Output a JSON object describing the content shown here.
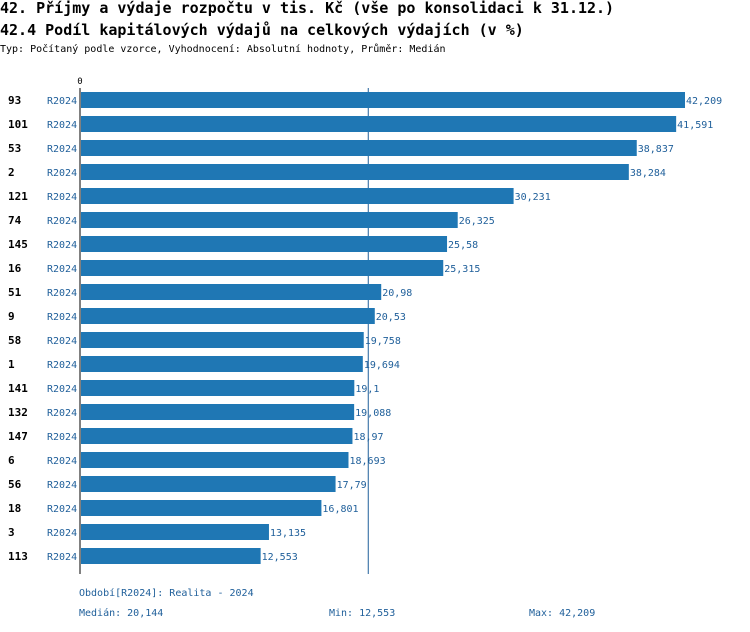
{
  "header": {
    "title": "42. Příjmy a výdaje rozpočtu v tis. Kč (vše po konsolidaci k 31.12.)",
    "subtitle": "42.4 Podíl kapitálových výdajů na celkových výdajích (v %)",
    "type_line": "Typ: Počítaný podle vzorce, Vyhodnocení: Absolutní hodnoty, Průměr: Medián"
  },
  "footer": {
    "period": "Období[R2024]: Realita - 2024",
    "median": "Medián: 20,144",
    "min": "Min: 12,553",
    "max": "Max: 42,209"
  },
  "colors": {
    "bar": "#1f77b4",
    "value_text": "#1f5f9a",
    "axis": "#1f5f9a"
  },
  "chart_data": {
    "type": "bar",
    "orientation": "horizontal",
    "title": "42.4 Podíl kapitálových výdajů na celkových výdajích (v %)",
    "axis_zero_label": "0",
    "xlim": [
      0,
      42.209
    ],
    "median": 20.144,
    "series_label": "R2024",
    "categories": [
      "93",
      "101",
      "53",
      "2",
      "121",
      "74",
      "145",
      "16",
      "51",
      "9",
      "58",
      "1",
      "141",
      "132",
      "147",
      "6",
      "56",
      "18",
      "3",
      "113"
    ],
    "values": [
      42.209,
      41.591,
      38.837,
      38.284,
      30.231,
      26.325,
      25.58,
      25.315,
      20.98,
      20.53,
      19.758,
      19.694,
      19.1,
      19.088,
      18.97,
      18.693,
      17.79,
      16.801,
      13.135,
      12.553
    ],
    "value_labels": [
      "42,209",
      "41,591",
      "38,837",
      "38,284",
      "30,231",
      "26,325",
      "25,58",
      "25,315",
      "20,98",
      "20,53",
      "19,758",
      "19,694",
      "19,1",
      "19,088",
      "18,97",
      "18,693",
      "17,79",
      "16,801",
      "13,135",
      "12,553"
    ]
  }
}
